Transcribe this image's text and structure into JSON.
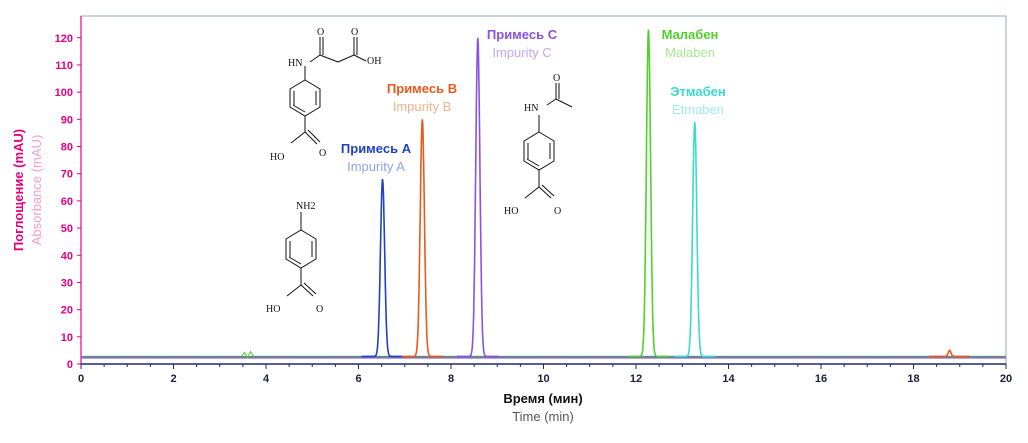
{
  "chart_data": {
    "type": "line",
    "xlabel": "Время (мин)",
    "xlabel_en": "Time (min)",
    "ylabel": "Поглощение (mAU)",
    "ylabel_en": "Absorbance (mAU)",
    "xlim": [
      0,
      20
    ],
    "ylim": [
      0,
      128
    ],
    "x_ticks": [
      0,
      2,
      4,
      6,
      8,
      10,
      12,
      14,
      16,
      18,
      20
    ],
    "y_ticks": [
      0,
      10,
      20,
      30,
      40,
      50,
      60,
      70,
      80,
      90,
      100,
      110,
      120
    ],
    "baseline_mAU": 2.8,
    "grid": false,
    "colors": {
      "y_axis": "#e6007e",
      "axis_line": "#1f2a6b",
      "series_a": "#2140c8",
      "series_b": "#e85a1a",
      "series_c": "#8a52e0",
      "series_malaben": "#4fd12a",
      "series_etmaben": "#3ad9cf"
    },
    "series": [
      {
        "name": "Примесь A",
        "name_en": "Impurity A",
        "peak_x": 6.52,
        "peak_y": 68,
        "color": "#2140c8"
      },
      {
        "name": "Примесь B",
        "name_en": "Impurity B",
        "peak_x": 7.38,
        "peak_y": 90,
        "color": "#e85a1a"
      },
      {
        "name": "Примесь C",
        "name_en": "Impurity C",
        "peak_x": 8.58,
        "peak_y": 120,
        "color": "#8a52e0"
      },
      {
        "name": "Малабен",
        "name_en": "Malaben",
        "peak_x": 12.27,
        "peak_y": 123,
        "color": "#4fd12a"
      },
      {
        "name": "Этмабен",
        "name_en": "Etmaben",
        "peak_x": 13.27,
        "peak_y": 89,
        "color": "#3ad9cf"
      }
    ],
    "minor_peak": {
      "x": 18.78,
      "y": 5,
      "color": "#e85a1a"
    }
  },
  "structures": {
    "impurity_a": {
      "amine": "NH2",
      "acid": "HO"
    },
    "impurity_b": {
      "nh": "HN",
      "acid_top": "OH",
      "carbonyl": "O",
      "acid": "HO"
    },
    "impurity_c": {
      "nh": "HN",
      "carbonyl": "O",
      "acid": "HO"
    }
  }
}
